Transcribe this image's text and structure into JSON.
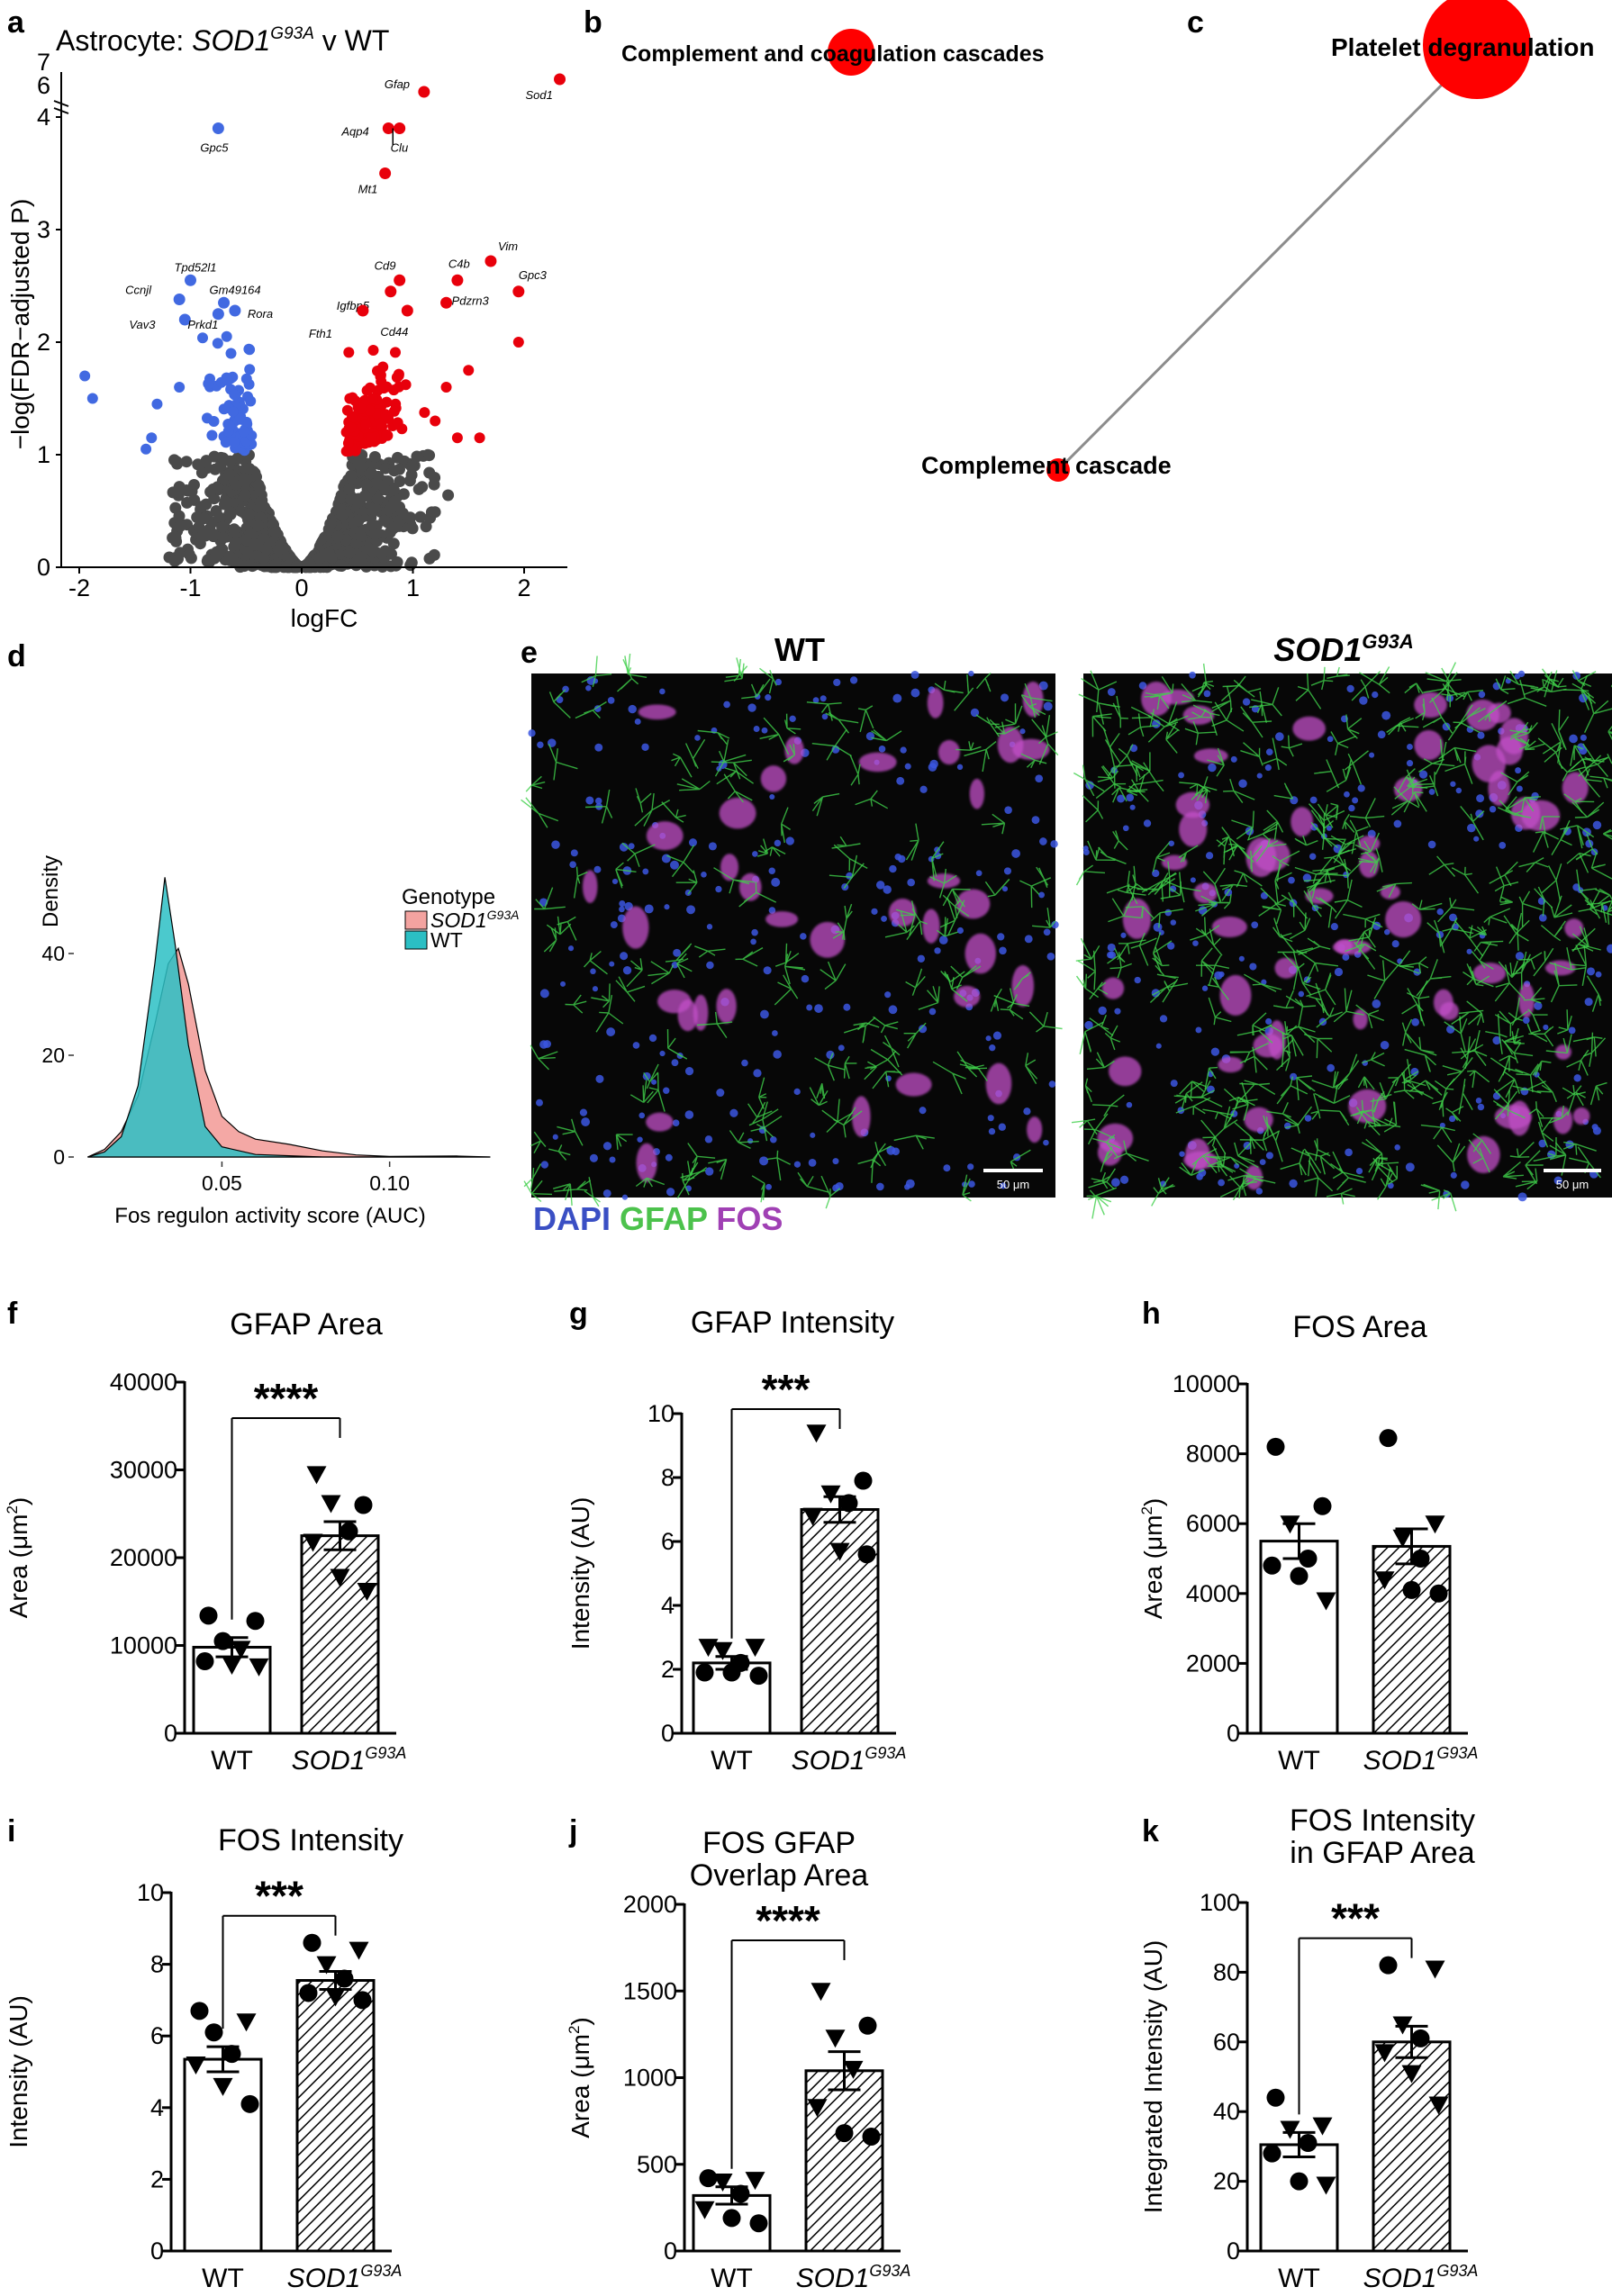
{
  "colors": {
    "up": "#e8000b",
    "down": "#4169e1",
    "ns": "#4a4a4a",
    "wt_fill": "#2bbfc4",
    "sod_fill": "#f3a3a0",
    "node": "#ff0000",
    "edge": "#8c8c8c",
    "dapi": "#3a4fc4",
    "gfap": "#4cc24c",
    "fos": "#a040b4"
  },
  "panels": {
    "a": {
      "label": "a",
      "title_pre": "Astrocyte: ",
      "title_gene": "SOD1",
      "title_sup": "G93A",
      "title_post": " v WT"
    },
    "b": {
      "label": "b"
    },
    "c": {
      "label": "c"
    },
    "d": {
      "label": "d"
    },
    "e": {
      "label": "e"
    },
    "f": {
      "label": "f"
    },
    "g": {
      "label": "g"
    },
    "h": {
      "label": "h"
    },
    "i": {
      "label": "i"
    },
    "j": {
      "label": "j"
    },
    "k": {
      "label": "k"
    }
  },
  "images": {
    "wt_title": "WT",
    "sod_gene": "SOD1",
    "sod_sup": "G93A",
    "scale_label": "50 μm",
    "channel_dapi": "DAPI",
    "channel_gfap": "GFAP",
    "channel_fos": "FOS"
  },
  "chart_data": [
    {
      "id": "a",
      "type": "scatter",
      "title": "Astrocyte: SOD1G93A v WT",
      "xlabel": "logFC",
      "ylabel": "−log(FDR−adjusted P)",
      "x_ticks": [
        -2,
        -1,
        0,
        1,
        2
      ],
      "y_ticks_lower": [
        0,
        1,
        2,
        3,
        4
      ],
      "y_ticks_upper": [
        6,
        7
      ],
      "xlim": [
        -2.15,
        2.45
      ],
      "labeled_genes": [
        {
          "gene": "Sod1",
          "x": 2.32,
          "y": 6.6,
          "group": "up"
        },
        {
          "gene": "Gfap",
          "x": 1.1,
          "y": 6.25,
          "group": "up"
        },
        {
          "gene": "Aqp4",
          "x": 0.78,
          "y": 3.9,
          "group": "up"
        },
        {
          "gene": "Clu",
          "x": 0.88,
          "y": 3.9,
          "group": "up"
        },
        {
          "gene": "Mt1",
          "x": 0.75,
          "y": 3.5,
          "group": "up"
        },
        {
          "gene": "Vim",
          "x": 1.7,
          "y": 2.72,
          "group": "up"
        },
        {
          "gene": "C4b",
          "x": 1.4,
          "y": 2.55,
          "group": "up"
        },
        {
          "gene": "Cd9",
          "x": 0.88,
          "y": 2.55,
          "group": "up"
        },
        {
          "gene": "Pdzrn3",
          "x": 1.3,
          "y": 2.35,
          "group": "up"
        },
        {
          "gene": "Igfbp5",
          "x": 0.8,
          "y": 2.45,
          "group": "up"
        },
        {
          "gene": "Gpc3",
          "x": 1.95,
          "y": 2.45,
          "group": "up"
        },
        {
          "gene": "Fth1",
          "x": 0.55,
          "y": 2.28,
          "group": "up"
        },
        {
          "gene": "Cd44",
          "x": 0.95,
          "y": 2.28,
          "group": "up"
        },
        {
          "gene": "Gpc5",
          "x": -0.75,
          "y": 3.9,
          "group": "down"
        },
        {
          "gene": "Tpd52l1",
          "x": -1.0,
          "y": 2.55,
          "group": "down"
        },
        {
          "gene": "Ccnjl",
          "x": -1.1,
          "y": 2.38,
          "group": "down"
        },
        {
          "gene": "Gm49164",
          "x": -0.7,
          "y": 2.35,
          "group": "down"
        },
        {
          "gene": "Rora",
          "x": -0.6,
          "y": 2.28,
          "group": "down"
        },
        {
          "gene": "Vav3",
          "x": -1.05,
          "y": 2.2,
          "group": "down"
        },
        {
          "gene": "Prkd1",
          "x": -0.75,
          "y": 2.25,
          "group": "down"
        }
      ]
    },
    {
      "id": "b",
      "type": "network",
      "nodes": [
        {
          "label": "Complement and coagulation cascades",
          "size": "medium"
        }
      ],
      "edges": []
    },
    {
      "id": "c",
      "type": "network",
      "nodes": [
        {
          "label": "Platelet degranulation",
          "size": "large"
        },
        {
          "label": "Complement cascade",
          "size": "small"
        }
      ],
      "edges": [
        [
          "Platelet degranulation",
          "Complement cascade"
        ]
      ]
    },
    {
      "id": "d",
      "type": "area",
      "xlabel": "Fos regulon activity score (AUC)",
      "ylabel": "Density",
      "x_ticks": [
        "0.05",
        "0.10"
      ],
      "y_ticks": [
        "0",
        "20",
        "40"
      ],
      "xlim": [
        0.0,
        0.14
      ],
      "ylim": [
        0,
        58
      ],
      "legend_title": "Genotype",
      "legend_sod_gene": "SOD1",
      "legend_sod_sup": "G93A",
      "legend_wt": "WT",
      "series": [
        {
          "name": "WT",
          "x": [
            0.01,
            0.015,
            0.02,
            0.025,
            0.03,
            0.033,
            0.036,
            0.04,
            0.045,
            0.05,
            0.06,
            0.08,
            0.13
          ],
          "y": [
            0,
            1,
            4,
            14,
            38,
            55,
            42,
            22,
            6,
            2,
            0.5,
            0,
            0
          ]
        },
        {
          "name": "SOD1G93A",
          "x": [
            0.01,
            0.015,
            0.02,
            0.025,
            0.03,
            0.034,
            0.037,
            0.04,
            0.045,
            0.05,
            0.055,
            0.06,
            0.07,
            0.08,
            0.09,
            0.1,
            0.12,
            0.13
          ],
          "y": [
            0,
            1.5,
            5,
            12,
            26,
            38,
            41,
            34,
            17,
            8,
            5,
            3.5,
            2.5,
            1.2,
            0.4,
            0.1,
            0.2,
            0
          ]
        }
      ]
    },
    {
      "id": "f",
      "type": "bar",
      "title": "GFAP Area",
      "ylabel": "Area (μm²)",
      "ylabel_pre": "Area (μm",
      "ylabel_sup": "2",
      "ylabel_post": ")",
      "ylim": [
        0,
        40000
      ],
      "y_ticks": [
        "0",
        "10000",
        "20000",
        "30000",
        "40000"
      ],
      "categories": [
        "WT",
        "SOD1G93A"
      ],
      "cat_wt": "WT",
      "cat_gene": "SOD1",
      "cat_sup": "G93A",
      "values": [
        9800,
        22500
      ],
      "sem": [
        1100,
        1600
      ],
      "significance": "****",
      "points": {
        "WT": [
          {
            "y": 13400,
            "m": "c"
          },
          {
            "y": 12800,
            "m": "c"
          },
          {
            "y": 10500,
            "m": "c"
          },
          {
            "y": 9600,
            "m": "t"
          },
          {
            "y": 8200,
            "m": "c"
          },
          {
            "y": 7800,
            "m": "t"
          },
          {
            "y": 7600,
            "m": "t"
          }
        ],
        "SOD1G93A": [
          {
            "y": 29500,
            "m": "t"
          },
          {
            "y": 26000,
            "m": "c"
          },
          {
            "y": 26200,
            "m": "t"
          },
          {
            "y": 23000,
            "m": "c"
          },
          {
            "y": 21800,
            "m": "t"
          },
          {
            "y": 17800,
            "m": "t"
          },
          {
            "y": 16200,
            "m": "t"
          }
        ]
      }
    },
    {
      "id": "g",
      "type": "bar",
      "title": "GFAP Intensity",
      "ylabel": "Intensity (AU)",
      "ylim": [
        0,
        10
      ],
      "y_ticks": [
        "0",
        "2",
        "4",
        "6",
        "8",
        "10"
      ],
      "categories": [
        "WT",
        "SOD1G93A"
      ],
      "cat_wt": "WT",
      "cat_gene": "SOD1",
      "cat_sup": "G93A",
      "values": [
        2.2,
        7.0
      ],
      "sem": [
        0.2,
        0.4
      ],
      "significance": "***",
      "points": {
        "WT": [
          {
            "y": 2.7,
            "m": "t"
          },
          {
            "y": 2.7,
            "m": "t"
          },
          {
            "y": 2.6,
            "m": "t"
          },
          {
            "y": 2.2,
            "m": "c"
          },
          {
            "y": 1.9,
            "m": "c"
          },
          {
            "y": 1.9,
            "m": "c"
          },
          {
            "y": 1.8,
            "m": "c"
          }
        ],
        "SOD1G93A": [
          {
            "y": 9.4,
            "m": "t"
          },
          {
            "y": 7.9,
            "m": "c"
          },
          {
            "y": 7.5,
            "m": "t"
          },
          {
            "y": 7.2,
            "m": "c"
          },
          {
            "y": 6.8,
            "m": "t"
          },
          {
            "y": 5.7,
            "m": "t"
          },
          {
            "y": 5.6,
            "m": "c"
          }
        ]
      }
    },
    {
      "id": "h",
      "type": "bar",
      "title": "FOS Area",
      "ylabel": "Area (μm²)",
      "ylabel_pre": "Area (μm",
      "ylabel_sup": "2",
      "ylabel_post": ")",
      "ylim": [
        0,
        10000
      ],
      "y_ticks": [
        "0",
        "2000",
        "4000",
        "6000",
        "8000",
        "10000"
      ],
      "categories": [
        "WT",
        "SOD1G93A"
      ],
      "cat_wt": "WT",
      "cat_gene": "SOD1",
      "cat_sup": "G93A",
      "values": [
        5500,
        5350
      ],
      "sem": [
        500,
        500
      ],
      "significance": "",
      "points": {
        "WT": [
          {
            "y": 8200,
            "m": "c"
          },
          {
            "y": 6500,
            "m": "c"
          },
          {
            "y": 6000,
            "m": "t"
          },
          {
            "y": 5000,
            "m": "c"
          },
          {
            "y": 4800,
            "m": "c"
          },
          {
            "y": 4500,
            "m": "c"
          },
          {
            "y": 3800,
            "m": "t"
          }
        ],
        "SOD1G93A": [
          {
            "y": 8450,
            "m": "c"
          },
          {
            "y": 6000,
            "m": "t"
          },
          {
            "y": 5600,
            "m": "t"
          },
          {
            "y": 5000,
            "m": "c"
          },
          {
            "y": 4400,
            "m": "t"
          },
          {
            "y": 4100,
            "m": "c"
          },
          {
            "y": 4000,
            "m": "c"
          }
        ]
      }
    },
    {
      "id": "i",
      "type": "bar",
      "title": "FOS Intensity",
      "ylabel": "Intensity (AU)",
      "ylim": [
        0,
        10
      ],
      "y_ticks": [
        "0",
        "2",
        "4",
        "6",
        "8",
        "10"
      ],
      "categories": [
        "WT",
        "SOD1G93A"
      ],
      "cat_wt": "WT",
      "cat_gene": "SOD1",
      "cat_sup": "G93A",
      "values": [
        5.35,
        7.55
      ],
      "sem": [
        0.35,
        0.25
      ],
      "significance": "***",
      "points": {
        "WT": [
          {
            "y": 6.7,
            "m": "c"
          },
          {
            "y": 6.4,
            "m": "t"
          },
          {
            "y": 6.1,
            "m": "c"
          },
          {
            "y": 5.5,
            "m": "c"
          },
          {
            "y": 5.2,
            "m": "t"
          },
          {
            "y": 4.6,
            "m": "t"
          },
          {
            "y": 4.1,
            "m": "c"
          }
        ],
        "SOD1G93A": [
          {
            "y": 8.6,
            "m": "c"
          },
          {
            "y": 8.4,
            "m": "t"
          },
          {
            "y": 8.0,
            "m": "t"
          },
          {
            "y": 7.6,
            "m": "c"
          },
          {
            "y": 7.2,
            "m": "c"
          },
          {
            "y": 7.1,
            "m": "t"
          },
          {
            "y": 7.0,
            "m": "c"
          }
        ]
      }
    },
    {
      "id": "j",
      "type": "bar",
      "title_line1": "FOS GFAP",
      "title_line2": "Overlap Area",
      "ylabel": "Area (μm²)",
      "ylabel_pre": "Area (μm",
      "ylabel_sup": "2",
      "ylabel_post": ")",
      "ylim": [
        0,
        2000
      ],
      "y_ticks": [
        "0",
        "500",
        "1000",
        "1500",
        "2000"
      ],
      "categories": [
        "WT",
        "SOD1G93A"
      ],
      "cat_wt": "WT",
      "cat_gene": "SOD1",
      "cat_sup": "G93A",
      "values": [
        320,
        1040
      ],
      "sem": [
        50,
        110
      ],
      "significance": "****",
      "points": {
        "WT": [
          {
            "y": 420,
            "m": "c"
          },
          {
            "y": 410,
            "m": "t"
          },
          {
            "y": 400,
            "m": "t"
          },
          {
            "y": 330,
            "m": "c"
          },
          {
            "y": 240,
            "m": "t"
          },
          {
            "y": 190,
            "m": "c"
          },
          {
            "y": 160,
            "m": "c"
          }
        ],
        "SOD1G93A": [
          {
            "y": 1500,
            "m": "t"
          },
          {
            "y": 1300,
            "m": "c"
          },
          {
            "y": 1230,
            "m": "t"
          },
          {
            "y": 1050,
            "m": "t"
          },
          {
            "y": 830,
            "m": "t"
          },
          {
            "y": 680,
            "m": "c"
          },
          {
            "y": 660,
            "m": "c"
          }
        ]
      }
    },
    {
      "id": "k",
      "type": "bar",
      "title_line1": "FOS Intensity",
      "title_line2": "in GFAP Area",
      "ylabel": "Integrated Intensity (AU)",
      "ylim": [
        0,
        100
      ],
      "y_ticks": [
        "0",
        "20",
        "40",
        "60",
        "80",
        "100"
      ],
      "categories": [
        "WT",
        "SOD1G93A"
      ],
      "cat_wt": "WT",
      "cat_gene": "SOD1",
      "cat_sup": "G93A",
      "values": [
        30.5,
        60
      ],
      "sem": [
        3.5,
        4.5
      ],
      "significance": "***",
      "points": {
        "WT": [
          {
            "y": 44,
            "m": "c"
          },
          {
            "y": 36,
            "m": "t"
          },
          {
            "y": 35,
            "m": "t"
          },
          {
            "y": 31,
            "m": "c"
          },
          {
            "y": 28,
            "m": "c"
          },
          {
            "y": 20,
            "m": "c"
          },
          {
            "y": 19,
            "m": "t"
          }
        ],
        "SOD1G93A": [
          {
            "y": 82,
            "m": "c"
          },
          {
            "y": 81,
            "m": "t"
          },
          {
            "y": 65,
            "m": "t"
          },
          {
            "y": 61,
            "m": "c"
          },
          {
            "y": 57,
            "m": "t"
          },
          {
            "y": 51,
            "m": "t"
          },
          {
            "y": 42,
            "m": "t"
          }
        ]
      }
    }
  ]
}
